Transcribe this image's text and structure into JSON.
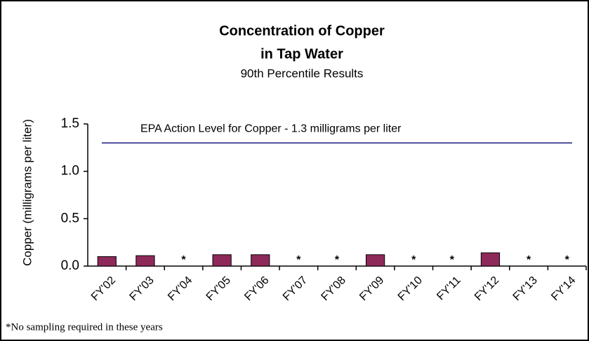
{
  "chart_data": {
    "type": "bar",
    "title": "Concentration of Copper",
    "title_line2": "in Tap Water",
    "subtitle": "90th Percentile Results",
    "y_label": "Copper (milligrams per liter)",
    "categories": [
      "FY'02",
      "FY'03",
      "FY'04",
      "FY'05",
      "FY'06",
      "FY'07",
      "FY'08",
      "FY'09",
      "FY'10",
      "FY'11",
      "FY'12",
      "FY'13",
      "FY'14"
    ],
    "values": [
      0.1,
      0.11,
      null,
      0.12,
      0.12,
      null,
      null,
      0.12,
      null,
      null,
      0.14,
      null,
      null
    ],
    "value_labels": [
      null,
      null,
      "*",
      null,
      null,
      "*",
      "*",
      null,
      "*",
      "*",
      null,
      "*",
      "*"
    ],
    "color": "#8e2a5a",
    "ylim": [
      0,
      1.5
    ],
    "yticks": [
      {
        "value": 0,
        "label": "0.0"
      },
      0.5,
      {
        "value": 1,
        "label": "1.0"
      },
      1.5
    ],
    "reference_line": {
      "value": 1.3,
      "label": "EPA Action Level for Copper - 1.3 milligrams per liter",
      "color": "#1a1a80"
    },
    "footnote": "*No sampling required in these years"
  }
}
